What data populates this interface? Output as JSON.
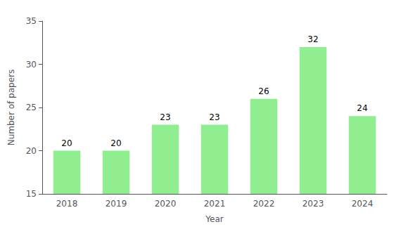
{
  "chart_data": {
    "type": "bar",
    "categories": [
      "2018",
      "2019",
      "2020",
      "2021",
      "2022",
      "2023",
      "2024"
    ],
    "values": [
      20,
      20,
      23,
      23,
      26,
      32,
      24
    ],
    "color": "#90EE90",
    "xlabel": "Year",
    "ylabel": "Number of papers",
    "ylim": [
      15,
      35
    ],
    "yticks": [
      15,
      20,
      25,
      30,
      35
    ],
    "grid": false,
    "data_labels": true
  }
}
